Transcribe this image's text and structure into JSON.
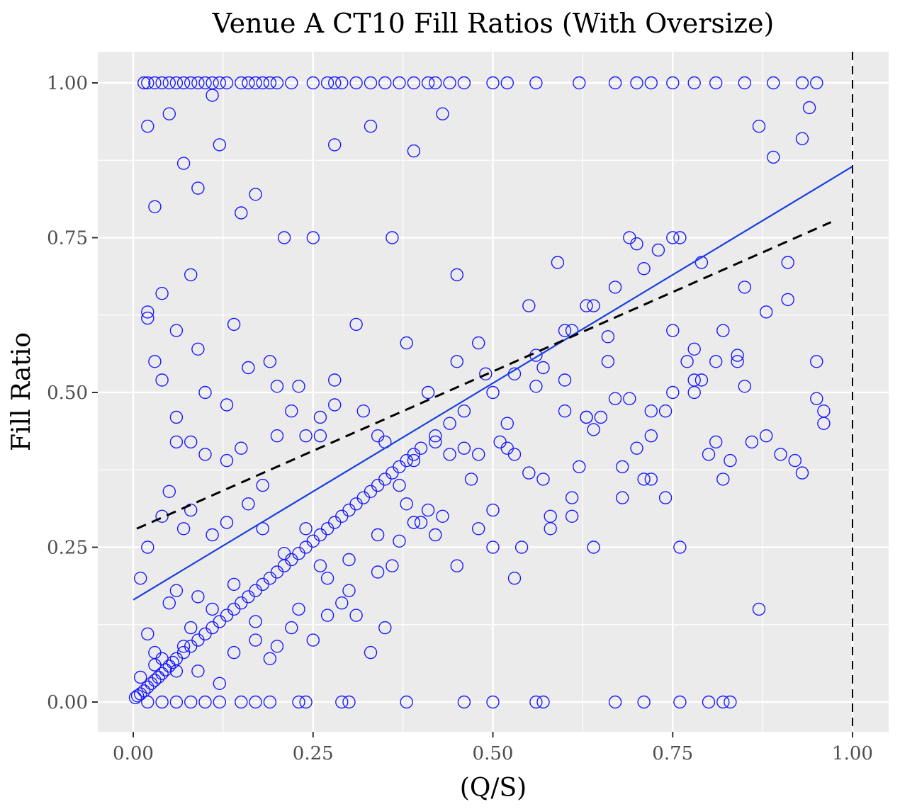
{
  "chart_data": {
    "type": "scatter",
    "title": "Venue A CT10 Fill Ratios (With Oversize)",
    "xlabel": "(Q/S)",
    "ylabel": "Fill Ratio",
    "xlim": [
      -0.1,
      1.05
    ],
    "ylim": [
      -0.05,
      1.05
    ],
    "x_ticks": [
      "0.00",
      "0.25",
      "0.50",
      "0.75",
      "1.00"
    ],
    "y_ticks": [
      "0.00",
      "0.25",
      "0.50",
      "0.75",
      "1.00"
    ],
    "grid": true,
    "legend": "none",
    "marker": "open-circle",
    "point_color": "#1a1aff",
    "fit_line_color": "#1a3fe0",
    "guide_line_color": "#000000",
    "panel_background": "#ebebeb",
    "fit_line": {
      "x": [
        0.0,
        1.0
      ],
      "y": [
        0.165,
        0.865
      ]
    },
    "reference_line": {
      "x": [
        0.005,
        0.97
      ],
      "y": [
        0.28,
        0.775
      ]
    },
    "vertical_line": {
      "x": 1.0
    },
    "points": {
      "x": [
        0.015,
        0.02,
        0.03,
        0.04,
        0.05,
        0.06,
        0.07,
        0.08,
        0.09,
        0.1,
        0.11,
        0.12,
        0.13,
        0.15,
        0.16,
        0.17,
        0.18,
        0.19,
        0.2,
        0.22,
        0.25,
        0.27,
        0.28,
        0.29,
        0.31,
        0.33,
        0.35,
        0.37,
        0.39,
        0.41,
        0.42,
        0.44,
        0.46,
        0.5,
        0.52,
        0.56,
        0.62,
        0.67,
        0.7,
        0.72,
        0.75,
        0.78,
        0.81,
        0.85,
        0.89,
        0.93,
        0.95,
        0.003,
        0.006,
        0.01,
        0.015,
        0.02,
        0.025,
        0.03,
        0.035,
        0.04,
        0.045,
        0.05,
        0.055,
        0.06,
        0.07,
        0.08,
        0.09,
        0.1,
        0.11,
        0.12,
        0.13,
        0.14,
        0.15,
        0.16,
        0.17,
        0.18,
        0.19,
        0.2,
        0.21,
        0.22,
        0.23,
        0.24,
        0.25,
        0.26,
        0.27,
        0.28,
        0.29,
        0.3,
        0.31,
        0.32,
        0.33,
        0.34,
        0.35,
        0.36,
        0.37,
        0.38,
        0.39,
        0.4,
        0.42,
        0.44,
        0.46,
        0.5,
        0.53,
        0.56,
        0.6,
        0.64,
        0.67,
        0.71,
        0.75,
        0.02,
        0.04,
        0.06,
        0.08,
        0.1,
        0.12,
        0.15,
        0.17,
        0.19,
        0.23,
        0.24,
        0.29,
        0.3,
        0.38,
        0.46,
        0.5,
        0.56,
        0.57,
        0.67,
        0.71,
        0.76,
        0.8,
        0.82,
        0.83,
        0.02,
        0.05,
        0.09,
        0.12,
        0.15,
        0.03,
        0.07,
        0.11,
        0.17,
        0.21,
        0.25,
        0.02,
        0.04,
        0.06,
        0.08,
        0.1,
        0.14,
        0.19,
        0.22,
        0.26,
        0.28,
        0.33,
        0.36,
        0.39,
        0.43,
        0.48,
        0.52,
        0.55,
        0.59,
        0.61,
        0.63,
        0.66,
        0.7,
        0.73,
        0.76,
        0.79,
        0.82,
        0.85,
        0.87,
        0.89,
        0.91,
        0.93,
        0.94,
        0.96,
        0.03,
        0.06,
        0.09,
        0.13,
        0.16,
        0.2,
        0.24,
        0.28,
        0.32,
        0.35,
        0.38,
        0.41,
        0.45,
        0.49,
        0.53,
        0.57,
        0.6,
        0.63,
        0.66,
        0.69,
        0.72,
        0.75,
        0.78,
        0.81,
        0.84,
        0.88,
        0.91,
        0.95,
        0.01,
        0.02,
        0.04,
        0.05,
        0.07,
        0.08,
        0.11,
        0.13,
        0.16,
        0.18,
        0.21,
        0.24,
        0.27,
        0.3,
        0.34,
        0.37,
        0.41,
        0.44,
        0.47,
        0.5,
        0.54,
        0.58,
        0.61,
        0.64,
        0.68,
        0.71,
        0.74,
        0.77,
        0.8,
        0.83,
        0.86,
        0.9,
        0.93,
        0.96,
        0.02,
        0.03,
        0.05,
        0.06,
        0.08,
        0.09,
        0.11,
        0.14,
        0.17,
        0.2,
        0.23,
        0.26,
        0.29,
        0.31,
        0.34,
        0.36,
        0.39,
        0.42,
        0.45,
        0.48,
        0.51,
        0.55,
        0.58,
        0.62,
        0.65,
        0.69,
        0.72,
        0.76,
        0.79,
        0.82,
        0.85,
        0.88,
        0.92,
        0.95,
        0.01,
        0.03,
        0.04,
        0.06,
        0.07,
        0.09,
        0.12,
        0.14,
        0.17,
        0.19,
        0.22,
        0.25,
        0.27,
        0.3,
        0.33,
        0.35,
        0.38,
        0.4,
        0.43,
        0.46,
        0.5,
        0.53,
        0.57,
        0.61,
        0.64,
        0.68,
        0.72,
        0.75,
        0.78,
        0.81,
        0.84,
        0.87,
        0.02,
        0.04,
        0.06,
        0.08,
        0.1,
        0.13,
        0.15,
        0.18,
        0.2,
        0.23,
        0.26,
        0.28,
        0.31,
        0.34,
        0.37,
        0.39,
        0.42,
        0.45,
        0.48,
        0.52,
        0.56,
        0.6,
        0.63,
        0.67,
        0.7,
        0.74,
        0.78
      ],
      "y": [
        1.0,
        1.0,
        1.0,
        1.0,
        1.0,
        1.0,
        1.0,
        1.0,
        1.0,
        1.0,
        1.0,
        1.0,
        1.0,
        1.0,
        1.0,
        1.0,
        1.0,
        1.0,
        1.0,
        1.0,
        1.0,
        1.0,
        1.0,
        1.0,
        1.0,
        1.0,
        1.0,
        1.0,
        1.0,
        1.0,
        1.0,
        1.0,
        1.0,
        1.0,
        1.0,
        1.0,
        1.0,
        1.0,
        1.0,
        1.0,
        1.0,
        1.0,
        1.0,
        1.0,
        1.0,
        1.0,
        1.0,
        0.007,
        0.01,
        0.013,
        0.018,
        0.024,
        0.03,
        0.035,
        0.04,
        0.046,
        0.052,
        0.058,
        0.064,
        0.07,
        0.08,
        0.09,
        0.1,
        0.11,
        0.12,
        0.13,
        0.14,
        0.15,
        0.16,
        0.17,
        0.18,
        0.19,
        0.2,
        0.21,
        0.22,
        0.23,
        0.24,
        0.25,
        0.26,
        0.27,
        0.28,
        0.29,
        0.3,
        0.31,
        0.32,
        0.33,
        0.34,
        0.35,
        0.36,
        0.37,
        0.38,
        0.39,
        0.4,
        0.41,
        0.43,
        0.45,
        0.47,
        0.5,
        0.53,
        0.56,
        0.6,
        0.64,
        0.67,
        0.7,
        0.75,
        0.0,
        0.0,
        0.0,
        0.0,
        0.0,
        0.0,
        0.0,
        0.0,
        0.0,
        0.0,
        0.0,
        0.0,
        0.0,
        0.0,
        0.0,
        0.0,
        0.0,
        0.0,
        0.0,
        0.0,
        0.0,
        0.0,
        0.0,
        0.0,
        0.93,
        0.95,
        0.83,
        0.9,
        0.79,
        0.8,
        0.87,
        0.98,
        0.82,
        0.75,
        0.75,
        0.63,
        0.66,
        0.6,
        0.69,
        0.5,
        0.61,
        0.55,
        0.47,
        0.43,
        0.9,
        0.93,
        0.75,
        0.89,
        0.95,
        0.58,
        0.45,
        0.64,
        0.71,
        0.6,
        0.64,
        0.59,
        0.74,
        0.73,
        0.75,
        0.71,
        0.6,
        0.67,
        0.93,
        0.88,
        0.71,
        0.91,
        0.96,
        0.47,
        0.55,
        0.42,
        0.57,
        0.48,
        0.54,
        0.51,
        0.43,
        0.52,
        0.47,
        0.42,
        0.58,
        0.5,
        0.69,
        0.53,
        0.4,
        0.36,
        0.52,
        0.46,
        0.55,
        0.75,
        0.47,
        0.5,
        0.57,
        0.42,
        0.55,
        0.63,
        0.65,
        0.55,
        0.2,
        0.25,
        0.3,
        0.34,
        0.28,
        0.31,
        0.27,
        0.29,
        0.32,
        0.28,
        0.24,
        0.28,
        0.2,
        0.23,
        0.27,
        0.26,
        0.31,
        0.4,
        0.36,
        0.31,
        0.25,
        0.28,
        0.33,
        0.44,
        0.38,
        0.36,
        0.33,
        0.55,
        0.4,
        0.39,
        0.42,
        0.4,
        0.37,
        0.45,
        0.11,
        0.08,
        0.16,
        0.18,
        0.12,
        0.17,
        0.15,
        0.19,
        0.13,
        0.09,
        0.15,
        0.22,
        0.16,
        0.14,
        0.21,
        0.22,
        0.29,
        0.27,
        0.22,
        0.28,
        0.42,
        0.37,
        0.3,
        0.38,
        0.46,
        0.49,
        0.43,
        0.25,
        0.52,
        0.36,
        0.51,
        0.43,
        0.39,
        0.49,
        0.04,
        0.06,
        0.07,
        0.05,
        0.09,
        0.05,
        0.03,
        0.08,
        0.1,
        0.07,
        0.12,
        0.1,
        0.14,
        0.18,
        0.08,
        0.12,
        0.32,
        0.29,
        0.3,
        0.41,
        0.25,
        0.2,
        0.54,
        0.3,
        0.25,
        0.33,
        0.36,
        0.6,
        0.5,
        0.55,
        0.56,
        0.15,
        0.62,
        0.52,
        0.46,
        0.42,
        0.4,
        0.39,
        0.41,
        0.35,
        0.43,
        0.51,
        0.46,
        0.48,
        0.61,
        0.43,
        0.35,
        0.39,
        0.42,
        0.55,
        0.4,
        0.41,
        0.51,
        0.47,
        0.46,
        0.49,
        0.41,
        0.47,
        0.52
      ]
    }
  }
}
